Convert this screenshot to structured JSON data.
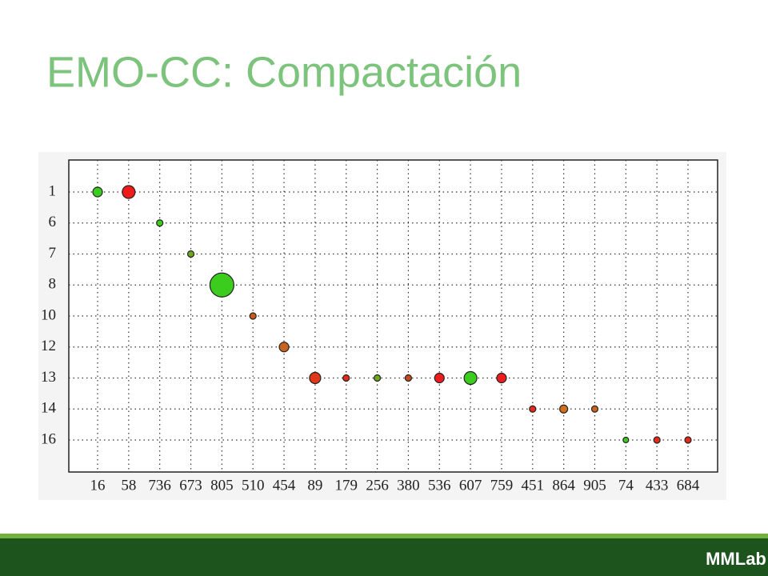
{
  "title": "EMO-CC: Compactación",
  "logo": "MMLab",
  "chart_data": {
    "type": "scatter",
    "categories": [
      "16",
      "58",
      "736",
      "673",
      "805",
      "510",
      "454",
      "89",
      "179",
      "256",
      "380",
      "536",
      "607",
      "759",
      "451",
      "864",
      "905",
      "74",
      "433",
      "684"
    ],
    "values": [
      1,
      1,
      6,
      7,
      8,
      10,
      12,
      13,
      13,
      13,
      13,
      13,
      13,
      13,
      14,
      14,
      14,
      16,
      16,
      16
    ],
    "sizes": [
      6,
      8,
      4,
      4,
      15,
      4,
      6,
      7,
      4,
      4,
      4,
      6,
      8,
      6,
      4,
      5,
      4,
      3.5,
      4,
      4
    ],
    "colors": [
      "#3ccc1e",
      "#ee1c1c",
      "#3ccc1e",
      "#6ea81e",
      "#3ccc1e",
      "#c8581e",
      "#c8641e",
      "#e0381a",
      "#e42a1a",
      "#6ea81e",
      "#c8481e",
      "#ee1c1c",
      "#3ccc1e",
      "#ee1c1c",
      "#e42a1a",
      "#d0701e",
      "#c8641e",
      "#3ccc1e",
      "#e42a1a",
      "#e42a1a"
    ],
    "yticks": [
      1,
      6,
      7,
      8,
      10,
      12,
      13,
      14,
      16
    ],
    "grid": true
  }
}
